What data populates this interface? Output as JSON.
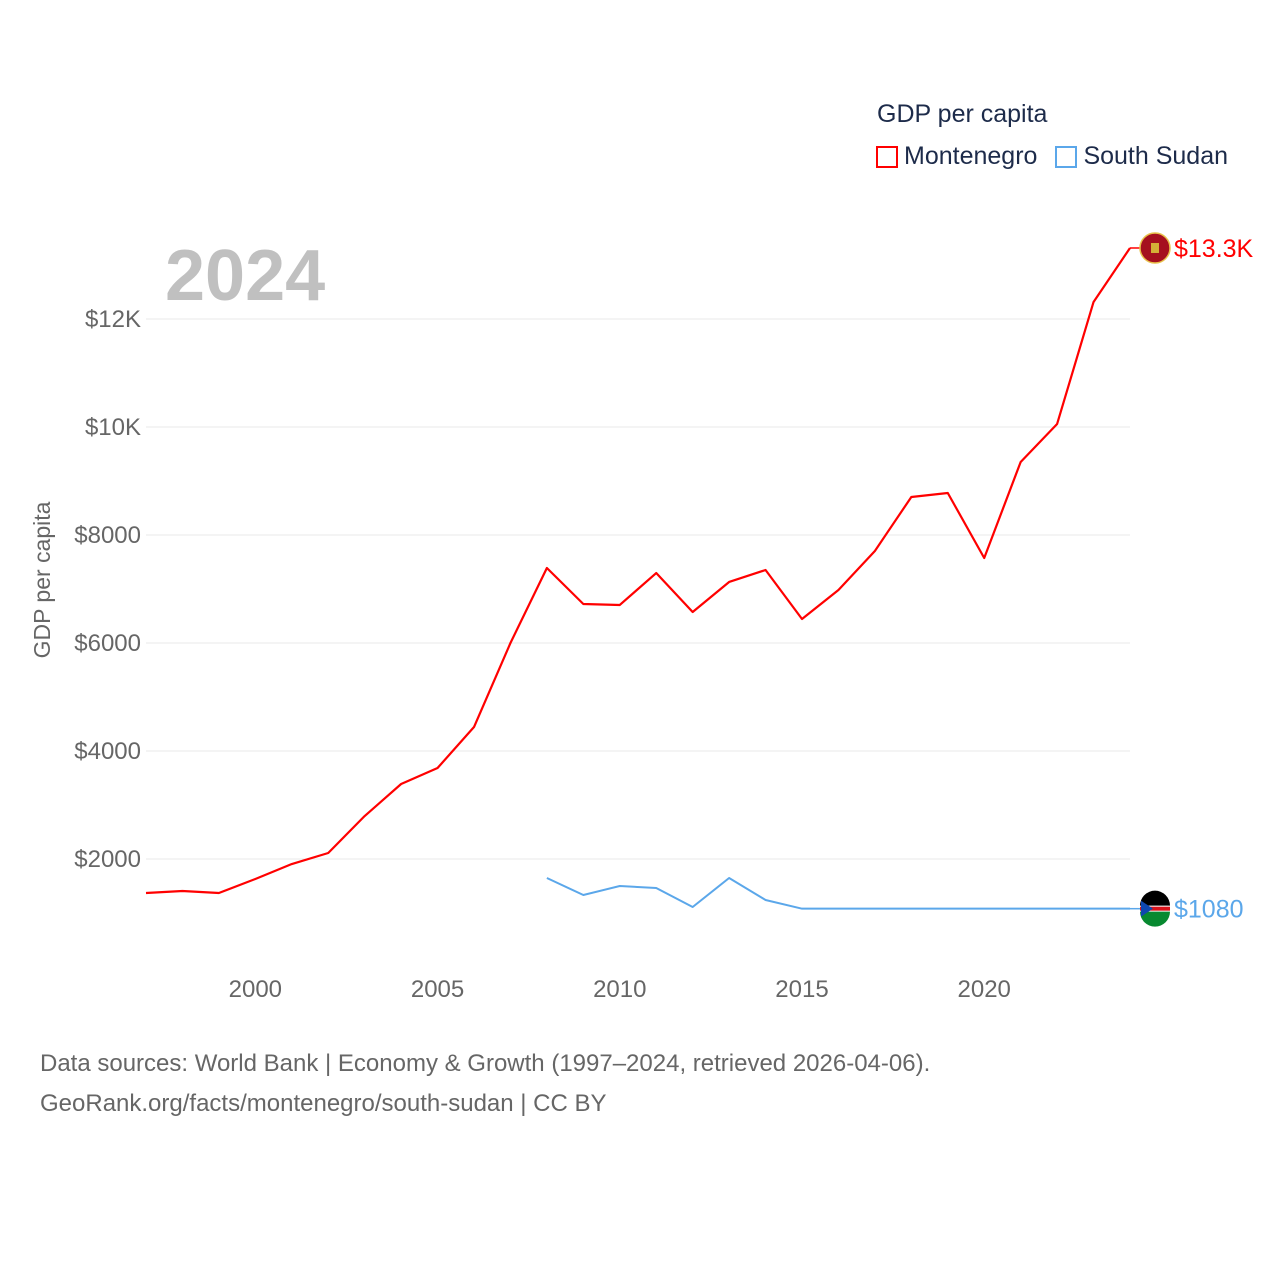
{
  "chart_data": {
    "type": "line",
    "title": "GDP per capita",
    "year_label": "2024",
    "ylabel": "GDP per capita",
    "xlabel": "",
    "xlim": [
      1997,
      2024
    ],
    "ylim": [
      0,
      14000
    ],
    "x_ticks": [
      2000,
      2005,
      2010,
      2015,
      2020
    ],
    "y_ticks": [
      {
        "v": 2000,
        "l": "$2000"
      },
      {
        "v": 4000,
        "l": "$4000"
      },
      {
        "v": 6000,
        "l": "$6000"
      },
      {
        "v": 8000,
        "l": "$8000"
      },
      {
        "v": 10000,
        "l": "$10K"
      },
      {
        "v": 12000,
        "l": "$12K"
      }
    ],
    "grid": true,
    "legend_position": "top-right",
    "series": [
      {
        "name": "Montenegro",
        "color": "#ff0000",
        "end_label": "$13.3K",
        "x": [
          1997,
          1998,
          1999,
          2000,
          2001,
          2002,
          2003,
          2004,
          2005,
          2006,
          2007,
          2008,
          2009,
          2010,
          2011,
          2012,
          2013,
          2014,
          2015,
          2016,
          2017,
          2018,
          2019,
          2020,
          2021,
          2022,
          2023,
          2024
        ],
        "values": [
          1370,
          1407,
          1370,
          1630,
          1907,
          2111,
          2796,
          3389,
          3685,
          4444,
          6000,
          7389,
          6722,
          6704,
          7296,
          6574,
          7130,
          7352,
          6444,
          6981,
          7704,
          8704,
          8778,
          7574,
          9352,
          10056,
          12315,
          13315
        ]
      },
      {
        "name": "South Sudan",
        "color": "#5ba7ea",
        "end_label": "$1080",
        "x": [
          2008,
          2009,
          2010,
          2011,
          2012,
          2013,
          2014,
          2015,
          2024
        ],
        "values": [
          1648,
          1333,
          1500,
          1463,
          1111,
          1648,
          1241,
          1080,
          1080
        ]
      }
    ]
  },
  "footer": {
    "line1": "Data sources: World Bank | Economy & Growth (1997–2024, retrieved 2026-04-06).",
    "line2": "GeoRank.org/facts/montenegro/south-sudan | CC BY"
  }
}
